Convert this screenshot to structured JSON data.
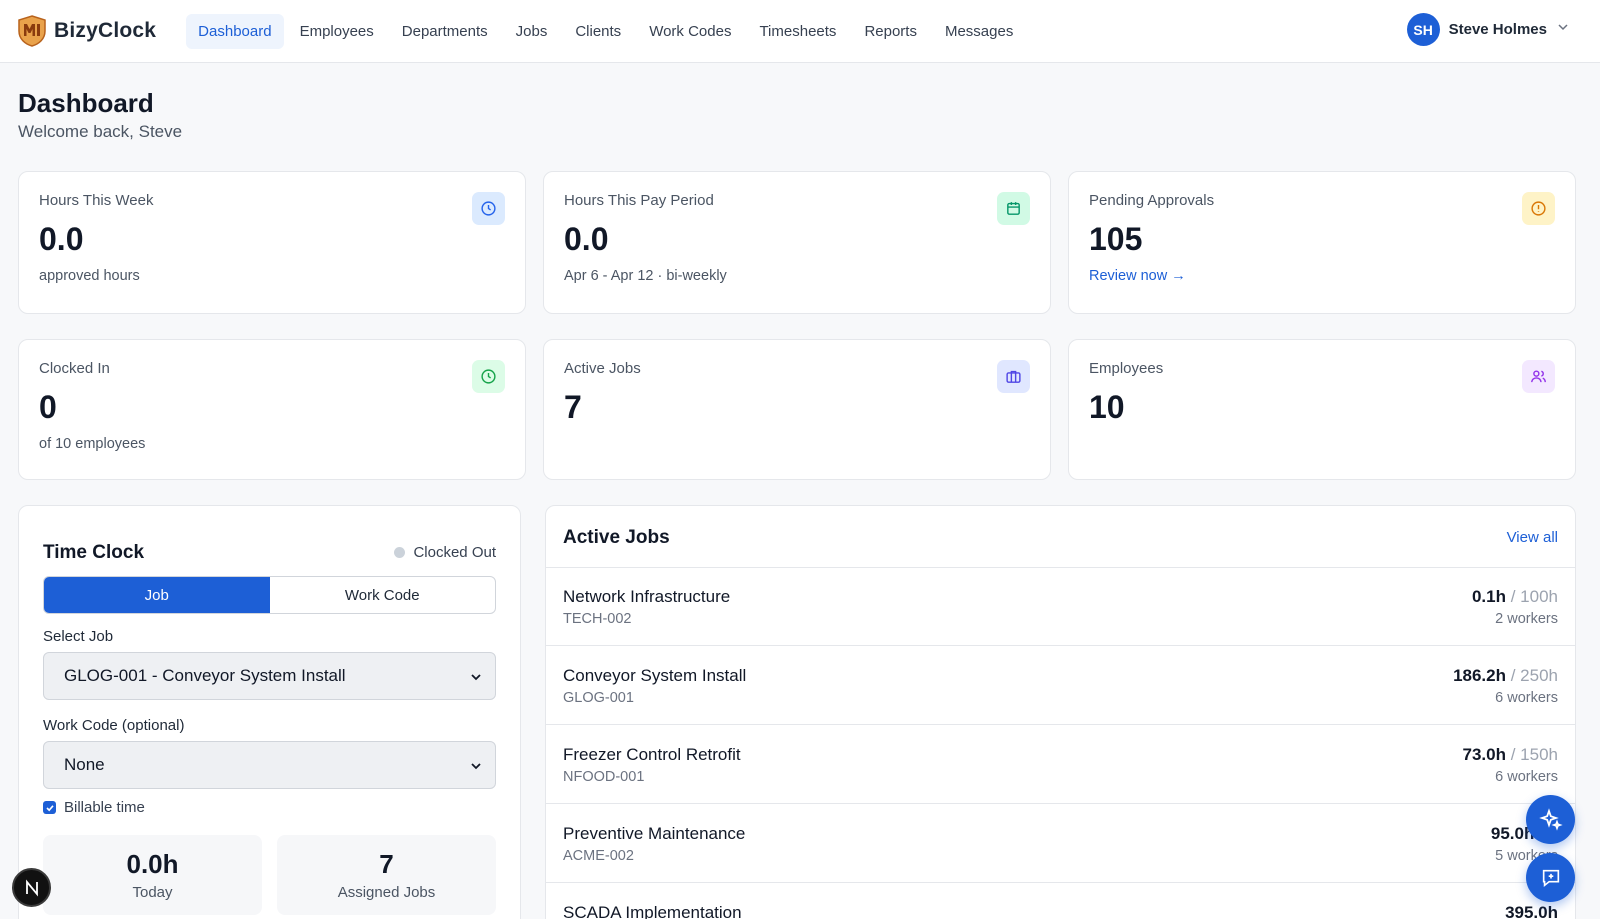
{
  "brand": {
    "name": "BizyClock",
    "logo_icon": "shield-logo-icon"
  },
  "nav": {
    "items": [
      {
        "label": "Dashboard",
        "active": true
      },
      {
        "label": "Employees"
      },
      {
        "label": "Departments"
      },
      {
        "label": "Jobs"
      },
      {
        "label": "Clients"
      },
      {
        "label": "Work Codes"
      },
      {
        "label": "Timesheets"
      },
      {
        "label": "Reports"
      },
      {
        "label": "Messages"
      }
    ]
  },
  "user": {
    "initials": "SH",
    "name": "Steve Holmes"
  },
  "header": {
    "title": "Dashboard",
    "subtitle": "Welcome back, Steve"
  },
  "stats": [
    {
      "label": "Hours This Week",
      "value": "0.0",
      "sub": "approved hours",
      "icon": "clock-icon",
      "color": "#2563eb"
    },
    {
      "label": "Hours This Pay Period",
      "value": "0.0",
      "sub": "Apr 6 - Apr 12 · bi-weekly",
      "icon": "calendar-icon",
      "color": "#059669"
    },
    {
      "label": "Pending Approvals",
      "value": "105",
      "link": "Review now →",
      "icon": "alert-circle-icon",
      "color": "#d97706"
    },
    {
      "label": "Clocked In",
      "value": "0",
      "sub": "of 10 employees",
      "icon": "clock-icon",
      "color": "#16a34a"
    },
    {
      "label": "Active Jobs",
      "value": "7",
      "icon": "briefcase-icon",
      "color": "#4f46e5"
    },
    {
      "label": "Employees",
      "value": "10",
      "icon": "users-icon",
      "color": "#9333ea"
    }
  ],
  "time_clock": {
    "title": "Time Clock",
    "status": "Clocked Out",
    "tabs": [
      "Job",
      "Work Code"
    ],
    "job_label": "Select Job",
    "job_value": "GLOG-001 - Conveyor System Install",
    "workcode_label": "Work Code (optional)",
    "workcode_value": "None",
    "billable_label": "Billable time",
    "today_value": "0.0h",
    "today_label": "Today",
    "assigned_value": "7",
    "assigned_label": "Assigned Jobs"
  },
  "active_jobs": {
    "title": "Active Jobs",
    "view_all": "View all",
    "rows": [
      {
        "name": "Network Infrastructure",
        "code": "TECH-002",
        "hours": "0.1h",
        "total": " / 100h",
        "workers": "2 workers"
      },
      {
        "name": "Conveyor System Install",
        "code": "GLOG-001",
        "hours": "186.2h",
        "total": " / 250h",
        "workers": "6 workers"
      },
      {
        "name": "Freezer Control Retrofit",
        "code": "NFOOD-001",
        "hours": "73.0h",
        "total": " / 150h",
        "workers": "6 workers"
      },
      {
        "name": "Preventive Maintenance",
        "code": "ACME-002",
        "hours": "95.0h",
        "total": " / 0",
        "workers": "5 workers"
      },
      {
        "name": "SCADA Implementation",
        "code": "",
        "hours": "395.0h",
        "total": "",
        "workers": ""
      }
    ]
  },
  "fabs": {
    "ai": "sparkle-icon",
    "chat": "message-icon",
    "badge": "N"
  }
}
